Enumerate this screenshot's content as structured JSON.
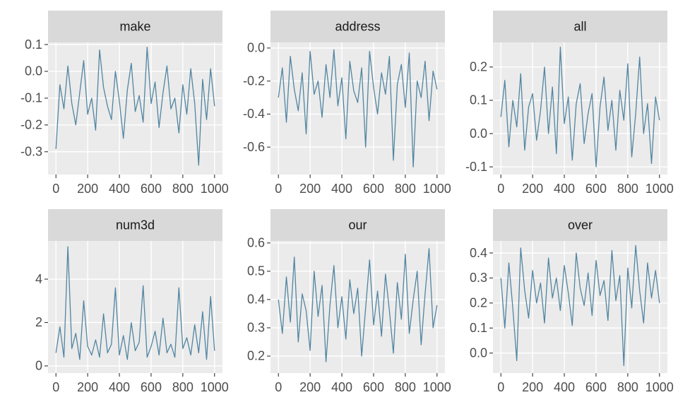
{
  "chart_data": [
    {
      "type": "line",
      "title": "make",
      "color": "#5185a1",
      "grid": true,
      "x": [
        0,
        25,
        50,
        75,
        100,
        125,
        150,
        175,
        200,
        225,
        250,
        275,
        300,
        325,
        350,
        375,
        400,
        425,
        450,
        475,
        500,
        525,
        550,
        575,
        600,
        625,
        650,
        675,
        700,
        725,
        750,
        775,
        800,
        825,
        850,
        875,
        900,
        925,
        950,
        975,
        1000
      ],
      "values": [
        -0.29,
        -0.05,
        -0.14,
        0.02,
        -0.12,
        -0.2,
        -0.08,
        0.04,
        -0.16,
        -0.1,
        -0.22,
        0.08,
        -0.06,
        -0.13,
        -0.18,
        0.0,
        -0.11,
        -0.25,
        -0.07,
        0.03,
        -0.15,
        -0.09,
        -0.19,
        0.09,
        -0.12,
        -0.04,
        -0.21,
        -0.08,
        0.02,
        -0.14,
        -0.1,
        -0.23,
        -0.05,
        -0.16,
        0.01,
        -0.12,
        -0.35,
        -0.03,
        -0.18,
        0.01,
        -0.13
      ],
      "xlim": [
        -50,
        1050
      ],
      "xticks": [
        0,
        200,
        400,
        600,
        800,
        1000
      ],
      "ylim": [
        -0.385,
        0.108
      ],
      "yticks": [
        0.1,
        {
          "value": 0,
          "label": "0.0"
        },
        -0.1,
        -0.2,
        -0.3
      ]
    },
    {
      "type": "line",
      "title": "address",
      "color": "#5185a1",
      "grid": true,
      "x": [
        0,
        25,
        50,
        75,
        100,
        125,
        150,
        175,
        200,
        225,
        250,
        275,
        300,
        325,
        350,
        375,
        400,
        425,
        450,
        475,
        500,
        525,
        550,
        575,
        600,
        625,
        650,
        675,
        700,
        725,
        750,
        775,
        800,
        825,
        850,
        875,
        900,
        925,
        950,
        975,
        1000
      ],
      "values": [
        -0.3,
        -0.12,
        -0.45,
        -0.05,
        -0.25,
        -0.38,
        -0.15,
        -0.52,
        -0.02,
        -0.28,
        -0.2,
        -0.42,
        -0.1,
        -0.3,
        -0.01,
        -0.35,
        -0.18,
        -0.55,
        -0.08,
        -0.26,
        -0.33,
        -0.12,
        -0.6,
        -0.02,
        -0.24,
        -0.4,
        -0.15,
        -0.28,
        -0.05,
        -0.68,
        -0.22,
        -0.1,
        -0.36,
        -0.03,
        -0.72,
        -0.2,
        -0.3,
        -0.08,
        -0.44,
        -0.14,
        -0.25
      ],
      "xlim": [
        -50,
        1050
      ],
      "xticks": [
        0,
        200,
        400,
        600,
        800,
        1000
      ],
      "ylim": [
        -0.766,
        0.034
      ],
      "yticks": [
        {
          "value": 0,
          "label": "0.0"
        },
        -0.2,
        -0.4,
        -0.6
      ]
    },
    {
      "type": "line",
      "title": "all",
      "color": "#5185a1",
      "grid": true,
      "x": [
        0,
        25,
        50,
        75,
        100,
        125,
        150,
        175,
        200,
        225,
        250,
        275,
        300,
        325,
        350,
        375,
        400,
        425,
        450,
        475,
        500,
        525,
        550,
        575,
        600,
        625,
        650,
        675,
        700,
        725,
        750,
        775,
        800,
        825,
        850,
        875,
        900,
        925,
        950,
        975,
        1000
      ],
      "values": [
        0.05,
        0.16,
        -0.04,
        0.1,
        0.02,
        0.18,
        -0.05,
        0.08,
        0.12,
        -0.02,
        0.07,
        0.2,
        0.0,
        0.14,
        -0.06,
        0.26,
        0.03,
        0.11,
        -0.08,
        0.09,
        0.15,
        -0.03,
        0.06,
        0.12,
        -0.1,
        0.08,
        0.17,
        0.01,
        0.1,
        -0.05,
        0.13,
        0.04,
        0.21,
        -0.07,
        0.06,
        0.23,
        0.0,
        0.09,
        -0.09,
        0.11,
        0.04
      ],
      "xlim": [
        -50,
        1050
      ],
      "xticks": [
        0,
        200,
        400,
        600,
        800,
        1000
      ],
      "ylim": [
        -0.123,
        0.274
      ],
      "yticks": [
        0.2,
        0.1,
        {
          "value": 0,
          "label": "0.0"
        },
        -0.1
      ]
    },
    {
      "type": "line",
      "title": "num3d",
      "color": "#5185a1",
      "grid": true,
      "x": [
        0,
        25,
        50,
        75,
        100,
        125,
        150,
        175,
        200,
        225,
        250,
        275,
        300,
        325,
        350,
        375,
        400,
        425,
        450,
        475,
        500,
        525,
        550,
        575,
        600,
        625,
        650,
        675,
        700,
        725,
        750,
        775,
        800,
        825,
        850,
        875,
        900,
        925,
        950,
        975,
        1000
      ],
      "values": [
        0.6,
        1.8,
        0.4,
        5.5,
        0.8,
        1.5,
        0.3,
        3.0,
        0.9,
        0.5,
        1.2,
        0.4,
        2.4,
        0.6,
        1.0,
        3.6,
        0.5,
        1.4,
        0.3,
        2.0,
        0.7,
        1.1,
        3.7,
        0.4,
        0.9,
        1.6,
        0.5,
        2.2,
        0.6,
        1.0,
        0.4,
        3.6,
        0.8,
        1.3,
        0.5,
        1.9,
        0.6,
        2.5,
        0.3,
        3.2,
        0.7
      ],
      "xlim": [
        -50,
        1050
      ],
      "xticks": [
        0,
        200,
        400,
        600,
        800,
        1000
      ],
      "ylim": [
        -0.33,
        5.76
      ],
      "yticks": [
        4,
        2,
        0
      ]
    },
    {
      "type": "line",
      "title": "our",
      "color": "#5185a1",
      "grid": true,
      "x": [
        0,
        25,
        50,
        75,
        100,
        125,
        150,
        175,
        200,
        225,
        250,
        275,
        300,
        325,
        350,
        375,
        400,
        425,
        450,
        475,
        500,
        525,
        550,
        575,
        600,
        625,
        650,
        675,
        700,
        725,
        750,
        775,
        800,
        825,
        850,
        875,
        900,
        925,
        950,
        975,
        1000
      ],
      "values": [
        0.4,
        0.28,
        0.48,
        0.32,
        0.55,
        0.25,
        0.42,
        0.36,
        0.22,
        0.5,
        0.34,
        0.45,
        0.18,
        0.38,
        0.52,
        0.3,
        0.41,
        0.26,
        0.47,
        0.35,
        0.44,
        0.2,
        0.37,
        0.54,
        0.31,
        0.43,
        0.27,
        0.49,
        0.36,
        0.21,
        0.46,
        0.33,
        0.56,
        0.28,
        0.4,
        0.5,
        0.24,
        0.42,
        0.58,
        0.3,
        0.38
      ],
      "xlim": [
        -50,
        1050
      ],
      "xticks": [
        0,
        200,
        400,
        600,
        800,
        1000
      ],
      "ylim": [
        0.14,
        0.607
      ],
      "yticks": [
        0.6,
        0.5,
        0.4,
        0.3,
        0.2
      ]
    },
    {
      "type": "line",
      "title": "over",
      "color": "#5185a1",
      "grid": true,
      "x": [
        0,
        25,
        50,
        75,
        100,
        125,
        150,
        175,
        200,
        225,
        250,
        275,
        300,
        325,
        350,
        375,
        400,
        425,
        450,
        475,
        500,
        525,
        550,
        575,
        600,
        625,
        650,
        675,
        700,
        725,
        750,
        775,
        800,
        825,
        850,
        875,
        900,
        925,
        950,
        975,
        1000
      ],
      "values": [
        0.3,
        0.1,
        0.36,
        0.18,
        -0.03,
        0.42,
        0.25,
        0.14,
        0.33,
        0.2,
        0.28,
        0.12,
        0.38,
        0.22,
        0.3,
        0.17,
        0.35,
        0.24,
        0.11,
        0.4,
        0.26,
        0.19,
        0.32,
        0.15,
        0.37,
        0.23,
        0.29,
        0.13,
        0.41,
        0.21,
        0.31,
        -0.05,
        0.34,
        0.18,
        0.43,
        0.25,
        0.12,
        0.36,
        0.22,
        0.33,
        0.2
      ],
      "xlim": [
        -50,
        1050
      ],
      "xticks": [
        0,
        200,
        400,
        600,
        800,
        1000
      ],
      "ylim": [
        -0.08,
        0.448
      ],
      "yticks": [
        0.4,
        0.3,
        0.2,
        0.1,
        {
          "value": 0,
          "label": "0.0"
        }
      ]
    }
  ]
}
